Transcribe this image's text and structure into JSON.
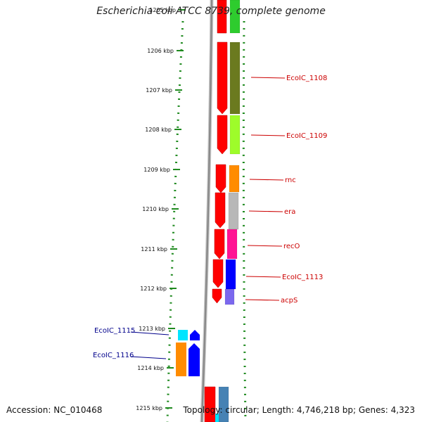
{
  "title": "Escherichia coli ATCC 8739, complete genome",
  "accession": "Accession: NC_010468",
  "summary": "Topology: circular; Length: 4,746,218 bp; Genes: 4,323",
  "colors": {
    "axis_dots": "#1f8a1f",
    "backbone": "#8a8a8a",
    "forward_strand": "#ff0000",
    "label_red": "#cc0000",
    "label_blue": "#00008b"
  },
  "scale": {
    "unit": "kbp",
    "ticks": [
      "1205 kbp",
      "1206 kbp",
      "1207 kbp",
      "1208 kbp",
      "1209 kbp",
      "1210 kbp",
      "1211 kbp",
      "1212 kbp",
      "1213 kbp",
      "1214 kbp",
      "1215 kbp"
    ]
  },
  "genes": [
    {
      "name": "",
      "color": "#2ecc2e"
    },
    {
      "name": "EcoIC_1108",
      "color": "#6b7a1f"
    },
    {
      "name": "EcoIC_1109",
      "color": "#9efc2a"
    },
    {
      "name": "rnc",
      "color": "#ff8c00"
    },
    {
      "name": "era",
      "color": "#b8b8b8"
    },
    {
      "name": "recO",
      "color": "#ff1493"
    },
    {
      "name": "EcoIC_1113",
      "color": "#0000ff"
    },
    {
      "name": "acpS",
      "color": "#7b68ee"
    },
    {
      "name": "EcoIC_1115",
      "color": "#00e5ff"
    },
    {
      "name": "EcoIC_1116",
      "color": "#ff8c00"
    },
    {
      "name": "",
      "color": "#4682b4"
    }
  ]
}
